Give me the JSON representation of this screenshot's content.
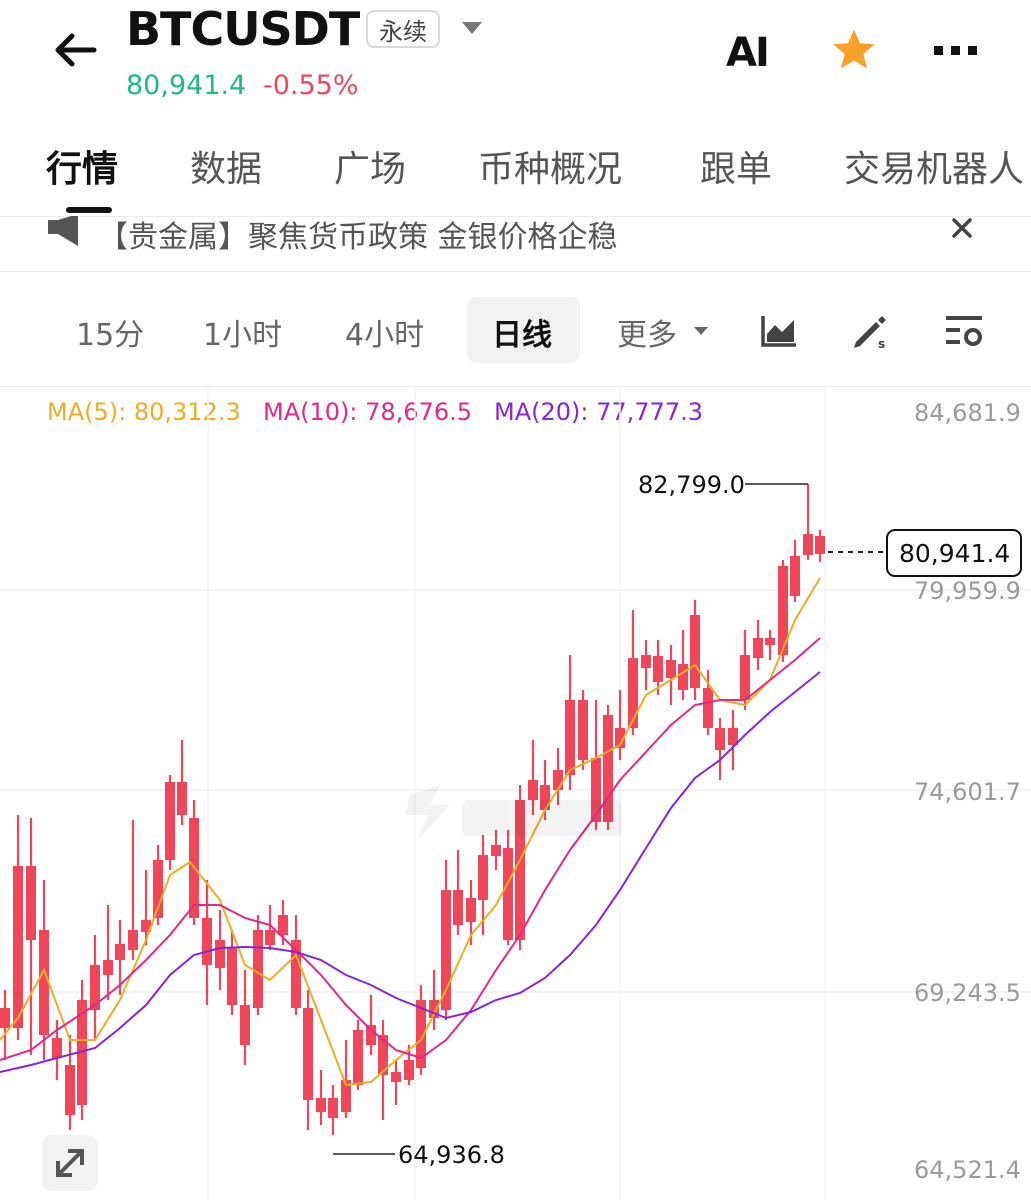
{
  "header": {
    "title": "BTCUSDT",
    "badge": "永续",
    "last_price": "80,941.4",
    "change_pct": "-0.55%",
    "ai_label": "AI"
  },
  "tabs": [
    {
      "label": "行情",
      "active": true
    },
    {
      "label": "数据"
    },
    {
      "label": "广场"
    },
    {
      "label": "币种概况"
    },
    {
      "label": "跟单"
    },
    {
      "label": "交易机器人"
    }
  ],
  "news": {
    "text": "【贵金属】聚焦货币政策 金银价格企稳"
  },
  "timeframes": [
    {
      "label": "15分"
    },
    {
      "label": "1小时"
    },
    {
      "label": "4小时"
    },
    {
      "label": "日线",
      "active": true
    },
    {
      "label": "更多"
    }
  ],
  "ma_legend": {
    "ma5": "MA(5): 80,312.3",
    "ma10": "MA(10): 78,676.5",
    "ma20": "MA(20): 77,777.3"
  },
  "chart_data": {
    "type": "candlestick",
    "y_ticks": [
      "84,681.9",
      "79,959.9",
      "74,601.7",
      "69,243.5",
      "64,521.4"
    ],
    "high_label": "82,799.0",
    "low_label": "64,936.8",
    "last_label": "80,941.4",
    "colors": {
      "up": "#1fb888",
      "down": "#f0465a",
      "ma5": "#f0ad22",
      "ma10": "#e6268a",
      "ma20": "#8a24d6"
    }
  },
  "icons": [
    "back-arrow-icon",
    "dropdown-triangle-icon",
    "ai-icon",
    "star-icon",
    "more-dots-icon",
    "news-speaker-icon",
    "close-icon",
    "chart-type-icon",
    "draw-icon",
    "settings-icon",
    "expand-icon"
  ]
}
